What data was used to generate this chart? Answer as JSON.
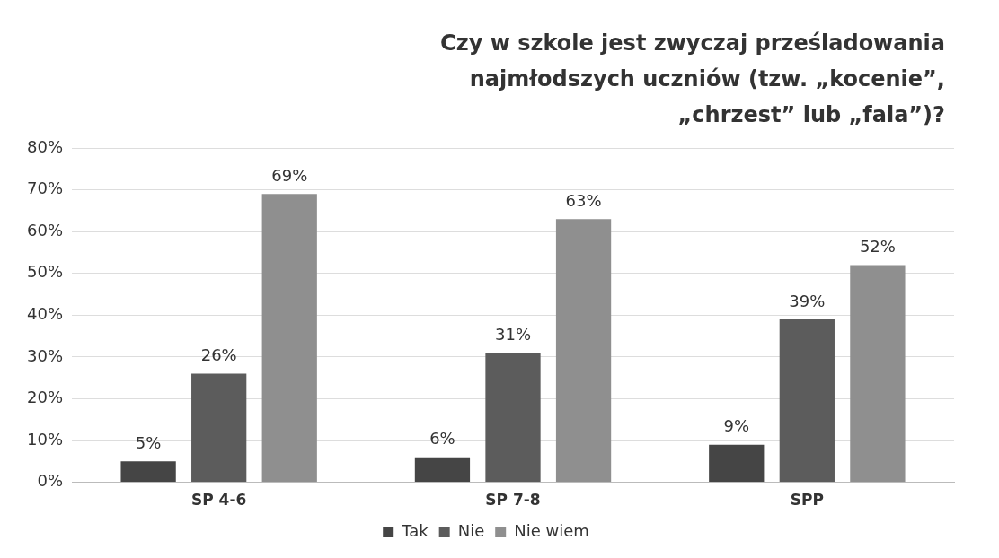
{
  "chart_data": {
    "type": "bar",
    "title": "Czy w szkole jest zwyczaj prześladowania najmłodszych uczniów (tzw. „kocenie”, „chrzest” lub „fala”)?",
    "categories": [
      "SP 4-6",
      "SP 7-8",
      "SPP"
    ],
    "series": [
      {
        "name": "Tak",
        "color": "#454545",
        "values": [
          5,
          6,
          9
        ],
        "value_labels": [
          "5%",
          "6%",
          "9%"
        ]
      },
      {
        "name": "Nie",
        "color": "#5c5c5c",
        "values": [
          26,
          31,
          39
        ],
        "value_labels": [
          "26%",
          "31%",
          "39%"
        ]
      },
      {
        "name": "Nie wiem",
        "color": "#8f8f8f",
        "values": [
          69,
          63,
          52
        ],
        "value_labels": [
          "69%",
          "63%",
          "52%"
        ]
      }
    ],
    "ylim": [
      0,
      80
    ],
    "yticks": [
      {
        "value": 0,
        "label": "0%"
      },
      {
        "value": 10,
        "label": "10%"
      },
      {
        "value": 20,
        "label": "20%"
      },
      {
        "value": 30,
        "label": "30%"
      },
      {
        "value": 40,
        "label": "40%"
      },
      {
        "value": 50,
        "label": "50%"
      },
      {
        "value": 60,
        "label": "60%"
      },
      {
        "value": 70,
        "label": "70%"
      },
      {
        "value": 80,
        "label": "80%"
      }
    ],
    "grid": "y",
    "legend": "bottom"
  }
}
